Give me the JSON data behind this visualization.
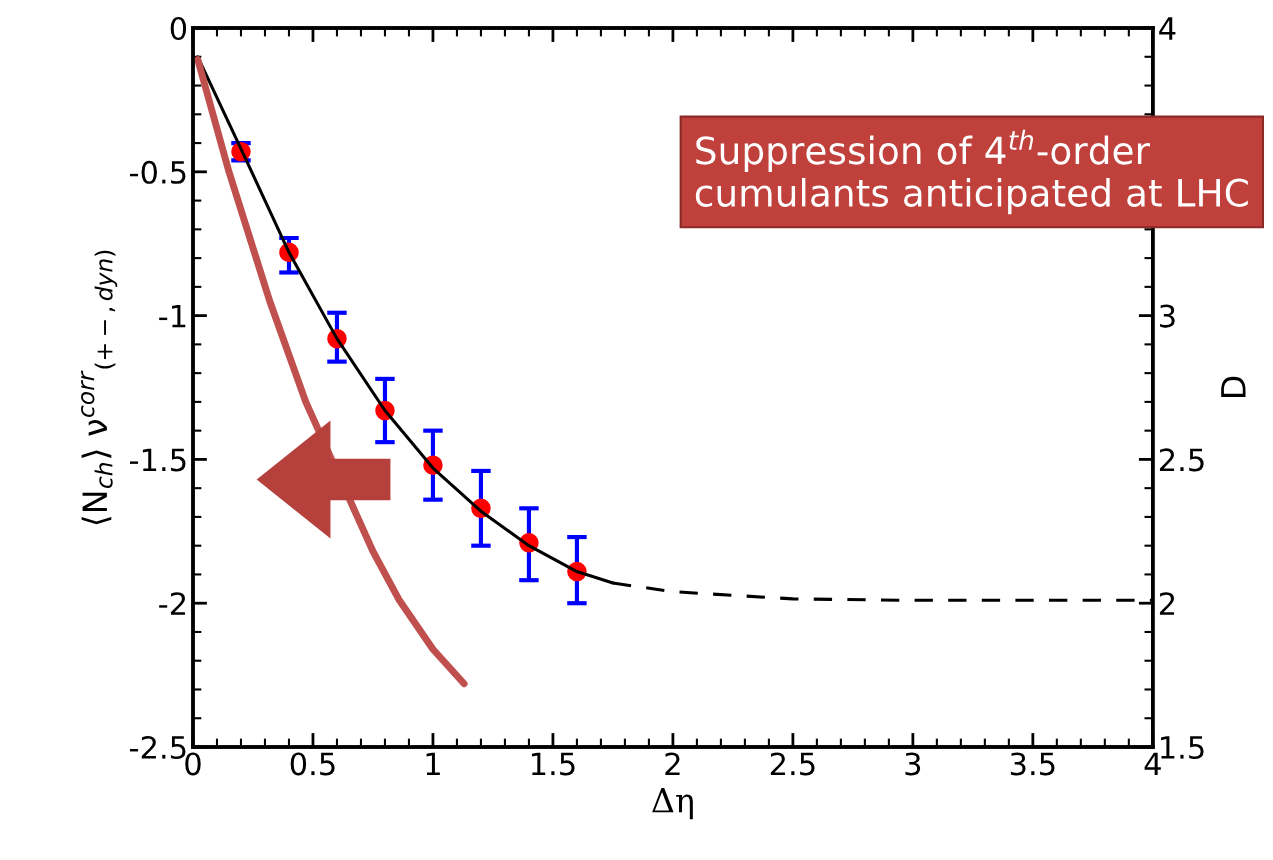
{
  "chart_data": {
    "type": "scatter",
    "xlabel": "Δη",
    "ylabel": "⟨N$_{ch}$⟩ ν$^{corr}$$_{(+−,dyn)}$",
    "y2label": "D",
    "xlim": [
      0,
      4
    ],
    "xticks": [
      0,
      0.5,
      1,
      1.5,
      2,
      2.5,
      3,
      3.5,
      4
    ],
    "ylim": [
      -2.5,
      0
    ],
    "yticks": [
      -2.5,
      -2,
      -1.5,
      -1,
      -0.5,
      0
    ],
    "y2lim": [
      1.5,
      4
    ],
    "y2ticks": [
      1.5,
      2,
      2.5,
      3,
      {
        "value": 3.5,
        "label": null
      },
      4
    ],
    "series": [
      {
        "type": "scatter",
        "color": "#ff0000",
        "marker": "circle",
        "x": [
          0.2,
          0.4,
          0.6,
          0.8,
          1.0,
          1.2,
          1.4,
          1.6
        ],
        "values": [
          -0.43,
          -0.78,
          -1.08,
          -1.33,
          -1.52,
          -1.67,
          -1.79,
          -1.89
        ],
        "errors": [
          [
            -0.46,
            -0.4
          ],
          [
            -0.85,
            -0.73
          ],
          [
            -1.16,
            -0.99
          ],
          [
            -1.44,
            -1.22
          ],
          [
            -1.64,
            -1.4
          ],
          [
            -1.8,
            -1.54
          ],
          [
            -1.92,
            -1.67
          ],
          [
            -2.0,
            -1.77
          ]
        ]
      },
      {
        "type": "line",
        "color": "#000000",
        "line_style": "solid",
        "x": [
          0.02,
          0.2,
          0.4,
          0.6,
          0.8,
          1.0,
          1.2,
          1.4,
          1.6,
          1.75
        ],
        "values": [
          -0.1,
          -0.42,
          -0.78,
          -1.08,
          -1.33,
          -1.53,
          -1.68,
          -1.8,
          -1.89,
          -1.93
        ]
      },
      {
        "type": "line",
        "color": "#000000",
        "line_style": "dashed",
        "x": [
          1.75,
          2.0,
          2.5,
          3.0,
          3.5,
          4.0
        ],
        "values": [
          -1.93,
          -1.96,
          -1.985,
          -1.99,
          -1.99,
          -1.99
        ]
      },
      {
        "type": "line",
        "color": "#c0504d",
        "line_style": "solid",
        "x": [
          0.02,
          0.15,
          0.32,
          0.47,
          0.75,
          0.86,
          1.0,
          1.13
        ],
        "values": [
          -0.11,
          -0.5,
          -0.95,
          -1.3,
          -1.82,
          -1.99,
          -2.16,
          -2.28
        ]
      }
    ],
    "annotations": [
      "Suppression of 4$^{th}$-order cumulants anticipated at LHC"
    ],
    "grid": false,
    "legend": false
  }
}
